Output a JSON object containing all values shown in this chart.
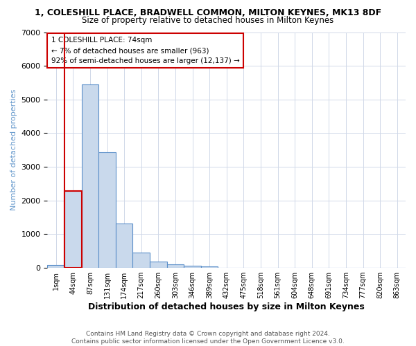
{
  "title": "1, COLESHILL PLACE, BRADWELL COMMON, MILTON KEYNES, MK13 8DF",
  "subtitle": "Size of property relative to detached houses in Milton Keynes",
  "xlabel": "Distribution of detached houses by size in Milton Keynes",
  "ylabel": "Number of detached properties",
  "bar_values": [
    75,
    2280,
    5450,
    3430,
    1310,
    450,
    185,
    95,
    65,
    45,
    0,
    0,
    0,
    0,
    0,
    0,
    0,
    0,
    0,
    0,
    0
  ],
  "bin_labels": [
    "1sqm",
    "44sqm",
    "87sqm",
    "131sqm",
    "174sqm",
    "217sqm",
    "260sqm",
    "303sqm",
    "346sqm",
    "389sqm",
    "432sqm",
    "475sqm",
    "518sqm",
    "561sqm",
    "604sqm",
    "648sqm",
    "691sqm",
    "734sqm",
    "777sqm",
    "820sqm",
    "863sqm"
  ],
  "bar_color": "#c9d9ec",
  "bar_edge_color": "#5b8fc9",
  "highlight_bar_index": 1,
  "highlight_bar_edge_color": "#cc0000",
  "red_line_x": 1.0,
  "annotation_text": "1 COLESHILL PLACE: 74sqm\n← 7% of detached houses are smaller (963)\n92% of semi-detached houses are larger (12,137) →",
  "annotation_box_color": "#ffffff",
  "annotation_box_edge_color": "#cc0000",
  "ylim": [
    0,
    7000
  ],
  "yticks": [
    0,
    1000,
    2000,
    3000,
    4000,
    5000,
    6000,
    7000
  ],
  "footer": "Contains HM Land Registry data © Crown copyright and database right 2024.\nContains public sector information licensed under the Open Government Licence v3.0.",
  "background_color": "#ffffff",
  "grid_color": "#d0d8e8",
  "title_fontsize": 9,
  "subtitle_fontsize": 8.5,
  "xlabel_fontsize": 9,
  "ylabel_fontsize": 8,
  "ylabel_color": "#6699cc",
  "footer_fontsize": 6.5,
  "footer_color": "#555555"
}
